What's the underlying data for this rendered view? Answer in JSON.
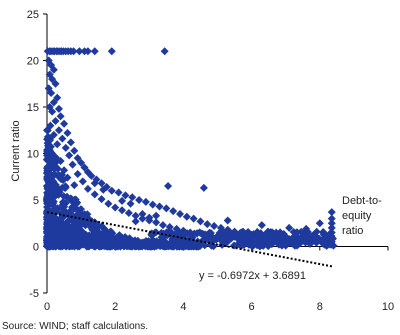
{
  "chart_data": {
    "type": "scatter",
    "title": "",
    "xlabel": "",
    "ylabel": "Current ratio",
    "xlim": [
      0,
      10
    ],
    "ylim": [
      -5,
      25
    ],
    "x_ticks": [
      "0",
      "2",
      "4",
      "6",
      "8",
      "10"
    ],
    "y_ticks": [
      "-5",
      "0",
      "5",
      "10",
      "15",
      "20",
      "25"
    ],
    "grid": false,
    "marker": "diamond",
    "series_color": "#1f3a9e",
    "trend_color": "#000000",
    "x_series_label": [
      "Debt-to-",
      "equity",
      "ratio"
    ],
    "trendline": {
      "slope": -0.6972,
      "intercept": 3.6891,
      "x_range": [
        0,
        8.4
      ],
      "style": "dotted"
    },
    "equation_label": "y = -0.6972x + 3.6891",
    "points": [
      [
        0.02,
        21.0
      ],
      [
        0.08,
        21.0
      ],
      [
        0.12,
        21.0
      ],
      [
        0.18,
        21.0
      ],
      [
        0.22,
        21.0
      ],
      [
        0.28,
        21.0
      ],
      [
        0.32,
        21.0
      ],
      [
        0.38,
        21.0
      ],
      [
        0.42,
        21.0
      ],
      [
        0.48,
        21.0
      ],
      [
        0.55,
        21.0
      ],
      [
        0.62,
        21.0
      ],
      [
        0.7,
        21.0
      ],
      [
        0.78,
        21.0
      ],
      [
        0.95,
        21.0
      ],
      [
        1.1,
        21.0
      ],
      [
        1.2,
        21.0
      ],
      [
        1.4,
        21.0
      ],
      [
        1.9,
        21.0
      ],
      [
        3.45,
        21.0
      ],
      [
        0.05,
        20.0
      ],
      [
        0.12,
        19.5
      ],
      [
        0.2,
        19.0
      ],
      [
        0.08,
        18.5
      ],
      [
        0.15,
        18.0
      ],
      [
        0.25,
        17.5
      ],
      [
        0.05,
        17.0
      ],
      [
        0.12,
        16.5
      ],
      [
        0.3,
        16.0
      ],
      [
        0.2,
        15.5
      ],
      [
        0.08,
        15.0
      ],
      [
        0.35,
        14.8
      ],
      [
        0.15,
        14.5
      ],
      [
        0.4,
        14.0
      ],
      [
        0.25,
        13.5
      ],
      [
        0.5,
        13.2
      ],
      [
        0.1,
        13.0
      ],
      [
        0.35,
        12.5
      ],
      [
        0.6,
        12.2
      ],
      [
        0.2,
        12.0
      ],
      [
        0.45,
        11.6
      ],
      [
        0.7,
        11.2
      ],
      [
        0.3,
        11.0
      ],
      [
        0.55,
        10.6
      ],
      [
        0.8,
        10.3
      ],
      [
        0.15,
        10.0
      ],
      [
        0.65,
        9.8
      ],
      [
        0.9,
        9.5
      ],
      [
        0.4,
        9.2
      ],
      [
        1.0,
        9.0
      ],
      [
        0.75,
        8.8
      ],
      [
        1.1,
        8.5
      ],
      [
        0.5,
        8.2
      ],
      [
        1.2,
        8.0
      ],
      [
        0.9,
        7.8
      ],
      [
        1.3,
        7.6
      ],
      [
        0.6,
        7.4
      ],
      [
        1.45,
        7.2
      ],
      [
        1.05,
        7.0
      ],
      [
        1.6,
        6.8
      ],
      [
        0.8,
        6.6
      ],
      [
        1.75,
        6.4
      ],
      [
        1.2,
        6.2
      ],
      [
        1.9,
        6.0
      ],
      [
        2.1,
        5.8
      ],
      [
        1.4,
        5.6
      ],
      [
        2.3,
        5.5
      ],
      [
        2.5,
        5.3
      ],
      [
        1.6,
        5.1
      ],
      [
        2.7,
        5.0
      ],
      [
        2.9,
        4.8
      ],
      [
        1.8,
        4.6
      ],
      [
        3.1,
        4.5
      ],
      [
        3.3,
        4.3
      ],
      [
        2.0,
        4.2
      ],
      [
        3.5,
        4.1
      ],
      [
        2.2,
        3.9
      ],
      [
        3.7,
        3.8
      ],
      [
        2.4,
        3.6
      ],
      [
        3.9,
        3.5
      ],
      [
        2.6,
        3.3
      ],
      [
        4.1,
        3.2
      ],
      [
        2.8,
        3.0
      ],
      [
        4.3,
        3.0
      ],
      [
        3.0,
        2.8
      ],
      [
        4.5,
        2.7
      ],
      [
        3.2,
        2.6
      ],
      [
        4.7,
        2.4
      ],
      [
        3.4,
        2.3
      ],
      [
        4.9,
        2.2
      ],
      [
        3.6,
        2.1
      ],
      [
        5.1,
        2.0
      ],
      [
        3.8,
        1.9
      ],
      [
        5.3,
        1.8
      ],
      [
        4.0,
        1.7
      ],
      [
        5.5,
        1.6
      ],
      [
        4.2,
        1.5
      ],
      [
        5.7,
        1.5
      ],
      [
        4.4,
        1.4
      ],
      [
        5.9,
        1.4
      ],
      [
        4.6,
        1.3
      ],
      [
        6.1,
        1.3
      ],
      [
        4.8,
        1.2
      ],
      [
        6.3,
        1.2
      ],
      [
        5.0,
        1.1
      ],
      [
        6.5,
        1.1
      ],
      [
        5.2,
        1.0
      ],
      [
        6.7,
        1.0
      ],
      [
        5.4,
        0.9
      ],
      [
        6.9,
        0.9
      ],
      [
        5.6,
        0.8
      ],
      [
        7.1,
        0.8
      ],
      [
        5.8,
        0.7
      ],
      [
        7.3,
        0.7
      ],
      [
        6.0,
        0.6
      ],
      [
        7.5,
        0.6
      ],
      [
        6.2,
        0.5
      ],
      [
        7.7,
        0.5
      ],
      [
        6.4,
        0.4
      ],
      [
        7.9,
        0.4
      ],
      [
        6.6,
        0.3
      ],
      [
        8.1,
        0.3
      ],
      [
        6.8,
        0.2
      ],
      [
        8.3,
        0.2
      ],
      [
        7.0,
        0.1
      ],
      [
        8.4,
        0.1
      ],
      [
        0.1,
        0.5
      ],
      [
        0.3,
        1.0
      ],
      [
        0.5,
        1.5
      ],
      [
        0.7,
        0.8
      ],
      [
        0.9,
        1.2
      ],
      [
        1.1,
        0.6
      ],
      [
        1.3,
        1.0
      ],
      [
        1.5,
        0.4
      ],
      [
        1.7,
        0.9
      ],
      [
        1.9,
        0.3
      ],
      [
        2.1,
        0.7
      ],
      [
        2.3,
        0.2
      ],
      [
        2.5,
        0.6
      ],
      [
        2.7,
        0.1
      ],
      [
        2.9,
        0.5
      ],
      [
        3.1,
        0.2
      ],
      [
        3.3,
        0.4
      ],
      [
        3.5,
        0.1
      ],
      [
        3.55,
        6.5
      ],
      [
        4.6,
        6.3
      ],
      [
        5.3,
        2.8
      ],
      [
        6.3,
        2.3
      ],
      [
        7.1,
        2.0
      ],
      [
        7.6,
        1.9
      ],
      [
        8.0,
        2.5
      ],
      [
        8.35,
        3.7
      ],
      [
        8.35,
        3.0
      ],
      [
        8.35,
        2.5
      ],
      [
        8.35,
        2.0
      ],
      [
        8.35,
        1.5
      ],
      [
        8.35,
        1.0
      ],
      [
        8.35,
        0.5
      ],
      [
        8.35,
        0.2
      ],
      [
        2.6,
        2.7
      ],
      [
        2.8,
        3.5
      ],
      [
        3.0,
        3.1
      ],
      [
        3.2,
        3.3
      ],
      [
        2.45,
        4.6
      ],
      [
        2.2,
        4.9
      ],
      [
        1.65,
        6.1
      ],
      [
        1.4,
        6.8
      ]
    ]
  },
  "source": "Source: WIND; staff calculations."
}
